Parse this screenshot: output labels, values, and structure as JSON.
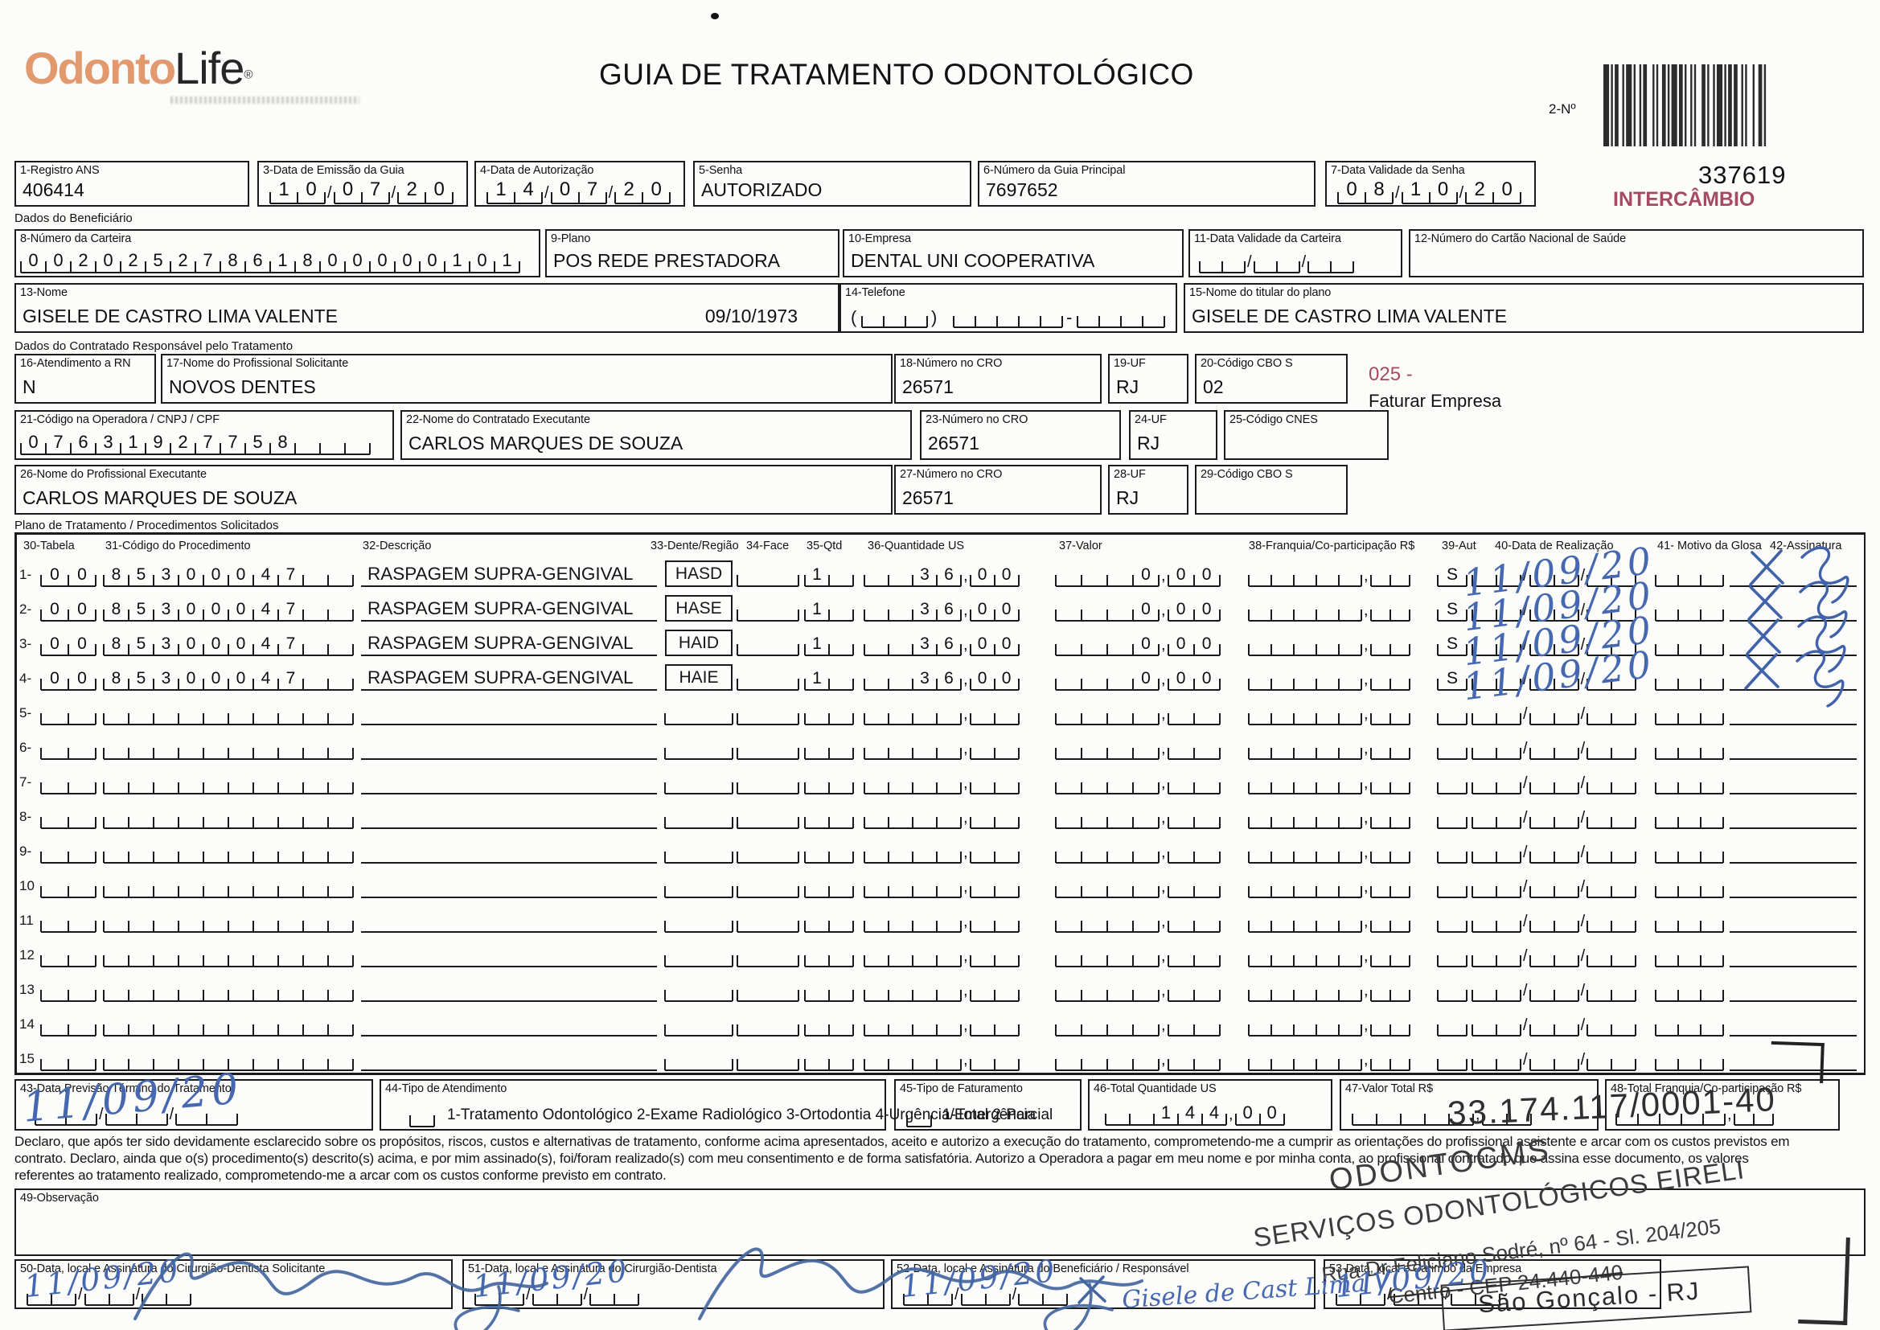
{
  "header": {
    "logo_odonto": "Odonto",
    "logo_life": "Life",
    "logo_reg": "®",
    "title": "GUIA DE TRATAMENTO ODONTOLÓGICO",
    "barcode_label": "2-Nº",
    "guide_number": "337619",
    "intercambio": "INTERCÂMBIO",
    "accent_color": "#a64a63"
  },
  "sections": {
    "beneficiario": "Dados do Beneficiário",
    "contratado": "Dados do Contratado Responsável pelo Tratamento",
    "plano": "Plano de Tratamento / Procedimentos Solicitados"
  },
  "f1": {
    "label": "1-Registro ANS",
    "value": "406414"
  },
  "f3": {
    "label": "3-Data de Emissão da Guia",
    "value": "10/07/20"
  },
  "f4": {
    "label": "4-Data de Autorização",
    "value": "14/07/20"
  },
  "f5": {
    "label": "5-Senha",
    "value": "AUTORIZADO"
  },
  "f6": {
    "label": "6-Número da Guia Principal",
    "value": "7697652"
  },
  "f7": {
    "label": "7-Data Validade da Senha",
    "value": "08/10/20"
  },
  "f8": {
    "label": "8-Número da Carteira",
    "value": "00202527861800000101"
  },
  "f9": {
    "label": "9-Plano",
    "value": "POS REDE PRESTADORA"
  },
  "f10": {
    "label": "10-Empresa",
    "value": "DENTAL UNI  COOPERATIVA"
  },
  "f11": {
    "label": "11-Data Validade da Carteira",
    "value": ""
  },
  "f12": {
    "label": "12-Número do Cartão Nacional de Saúde",
    "value": ""
  },
  "f13": {
    "label": "13-Nome",
    "value": "GISELE DE CASTRO LIMA VALENTE",
    "birthdate": "09/10/1973"
  },
  "f14": {
    "label": "14-Telefone",
    "value": "",
    "paren_open": "(",
    "paren_close": ")",
    "hyphen": "-"
  },
  "f15": {
    "label": "15-Nome do titular do plano",
    "value": "GISELE DE CASTRO LIMA VALENTE"
  },
  "f16": {
    "label": "16-Atendimento a RN",
    "value": "N"
  },
  "f17": {
    "label": "17-Nome do Profissional Solicitante",
    "value": "NOVOS DENTES"
  },
  "f18": {
    "label": "18-Número no CRO",
    "value": "26571"
  },
  "f19": {
    "label": "19-UF",
    "value": "RJ"
  },
  "f20": {
    "label": "20-Código CBO S",
    "value": "02"
  },
  "note025": {
    "code": "025 -",
    "text": "Faturar Empresa"
  },
  "f21": {
    "label": "21-Código na Operadora / CNPJ / CPF",
    "value": "07631927758"
  },
  "f22": {
    "label": "22-Nome do Contratado Executante",
    "value": "CARLOS MARQUES DE SOUZA"
  },
  "f23": {
    "label": "23-Número no CRO",
    "value": "26571"
  },
  "f24": {
    "label": "24-UF",
    "value": "RJ"
  },
  "f25": {
    "label": "25-Código CNES",
    "value": ""
  },
  "f26": {
    "label": "26-Nome do Profissional Executante",
    "value": "CARLOS MARQUES DE SOUZA"
  },
  "f27": {
    "label": "27-Número no CRO",
    "value": "26571"
  },
  "f28": {
    "label": "28-UF",
    "value": "RJ"
  },
  "f29": {
    "label": "29-Código CBO S",
    "value": ""
  },
  "table": {
    "headers": [
      "30-Tabela",
      "31-Código do Procedimento",
      "32-Descrição",
      "33-Dente/Região",
      "34-Face",
      "35-Qtd",
      "36-Quantidade US",
      "37-Valor",
      "38-Franquia/Co-participação R$",
      "39-Aut",
      "40-Data de Realização",
      "41- Motivo da Glosa",
      "42-Assinatura"
    ],
    "rows": [
      {
        "num": "1",
        "tabela": "00",
        "codigo": "85300047",
        "descricao": "RASPAGEM SUPRA-GENGIVAL",
        "dente": "HASD",
        "face": "",
        "qtd": "1",
        "qtd_us": "36,00",
        "valor": "0,00",
        "franquia": "",
        "aut": "S",
        "data_realizacao": "11/09/20",
        "motivo": "",
        "assinatura": "x"
      },
      {
        "num": "2",
        "tabela": "00",
        "codigo": "85300047",
        "descricao": "RASPAGEM SUPRA-GENGIVAL",
        "dente": "HASE",
        "face": "",
        "qtd": "1",
        "qtd_us": "36,00",
        "valor": "0,00",
        "franquia": "",
        "aut": "S",
        "data_realizacao": "11/09/20",
        "motivo": "",
        "assinatura": "x"
      },
      {
        "num": "3",
        "tabela": "00",
        "codigo": "85300047",
        "descricao": "RASPAGEM SUPRA-GENGIVAL",
        "dente": "HAID",
        "face": "",
        "qtd": "1",
        "qtd_us": "36,00",
        "valor": "0,00",
        "franquia": "",
        "aut": "S",
        "data_realizacao": "11/09/20",
        "motivo": "",
        "assinatura": "x"
      },
      {
        "num": "4",
        "tabela": "00",
        "codigo": "85300047",
        "descricao": "RASPAGEM SUPRA-GENGIVAL",
        "dente": "HAIE",
        "face": "",
        "qtd": "1",
        "qtd_us": "36,00",
        "valor": "0,00",
        "franquia": "",
        "aut": "S",
        "data_realizacao": "11/09/20",
        "motivo": "",
        "assinatura": "x"
      },
      {
        "num": "5",
        "tabela": "",
        "codigo": "",
        "descricao": "",
        "dente": "",
        "face": "",
        "qtd": "",
        "qtd_us": "",
        "valor": "",
        "franquia": "",
        "aut": "",
        "data_realizacao": "",
        "motivo": "",
        "assinatura": ""
      },
      {
        "num": "6",
        "tabela": "",
        "codigo": "",
        "descricao": "",
        "dente": "",
        "face": "",
        "qtd": "",
        "qtd_us": "",
        "valor": "",
        "franquia": "",
        "aut": "",
        "data_realizacao": "",
        "motivo": "",
        "assinatura": ""
      },
      {
        "num": "7",
        "tabela": "",
        "codigo": "",
        "descricao": "",
        "dente": "",
        "face": "",
        "qtd": "",
        "qtd_us": "",
        "valor": "",
        "franquia": "",
        "aut": "",
        "data_realizacao": "",
        "motivo": "",
        "assinatura": ""
      },
      {
        "num": "8",
        "tabela": "",
        "codigo": "",
        "descricao": "",
        "dente": "",
        "face": "",
        "qtd": "",
        "qtd_us": "",
        "valor": "",
        "franquia": "",
        "aut": "",
        "data_realizacao": "",
        "motivo": "",
        "assinatura": ""
      },
      {
        "num": "9",
        "tabela": "",
        "codigo": "",
        "descricao": "",
        "dente": "",
        "face": "",
        "qtd": "",
        "qtd_us": "",
        "valor": "",
        "franquia": "",
        "aut": "",
        "data_realizacao": "",
        "motivo": "",
        "assinatura": ""
      },
      {
        "num": "10",
        "tabela": "",
        "codigo": "",
        "descricao": "",
        "dente": "",
        "face": "",
        "qtd": "",
        "qtd_us": "",
        "valor": "",
        "franquia": "",
        "aut": "",
        "data_realizacao": "",
        "motivo": "",
        "assinatura": ""
      },
      {
        "num": "11",
        "tabela": "",
        "codigo": "",
        "descricao": "",
        "dente": "",
        "face": "",
        "qtd": "",
        "qtd_us": "",
        "valor": "",
        "franquia": "",
        "aut": "",
        "data_realizacao": "",
        "motivo": "",
        "assinatura": ""
      },
      {
        "num": "12",
        "tabela": "",
        "codigo": "",
        "descricao": "",
        "dente": "",
        "face": "",
        "qtd": "",
        "qtd_us": "",
        "valor": "",
        "franquia": "",
        "aut": "",
        "data_realizacao": "",
        "motivo": "",
        "assinatura": ""
      },
      {
        "num": "13",
        "tabela": "",
        "codigo": "",
        "descricao": "",
        "dente": "",
        "face": "",
        "qtd": "",
        "qtd_us": "",
        "valor": "",
        "franquia": "",
        "aut": "",
        "data_realizacao": "",
        "motivo": "",
        "assinatura": ""
      },
      {
        "num": "14",
        "tabela": "",
        "codigo": "",
        "descricao": "",
        "dente": "",
        "face": "",
        "qtd": "",
        "qtd_us": "",
        "valor": "",
        "franquia": "",
        "aut": "",
        "data_realizacao": "",
        "motivo": "",
        "assinatura": ""
      },
      {
        "num": "15",
        "tabela": "",
        "codigo": "",
        "descricao": "",
        "dente": "",
        "face": "",
        "qtd": "",
        "qtd_us": "",
        "valor": "",
        "franquia": "",
        "aut": "",
        "data_realizacao": "",
        "motivo": "",
        "assinatura": ""
      }
    ]
  },
  "f43": {
    "label": "43-Data Previsão Término do Tratamento",
    "handwritten": "11/09/20"
  },
  "f44": {
    "label": "44-Tipo de Atendimento",
    "options": "1-Tratamento Odontológico  2-Exame Radiológico  3-Ortodontia  4-Urgência/Emergência",
    "value": ""
  },
  "f45": {
    "label": "45-Tipo de Faturamento",
    "options": "1-Total  2-Parcial",
    "value": ""
  },
  "f46": {
    "label": "46-Total Quantidade US",
    "value": "144,00"
  },
  "f47": {
    "label": "47-Valor Total R$",
    "value": ""
  },
  "f48": {
    "label": "48-Total Franquia/Co-participação R$",
    "value": ""
  },
  "declaration": {
    "line1": "Declaro, que após ter sido devidamente esclarecido sobre os propósitos, riscos, custos e alternativas de tratamento, conforme acima apresentados, aceito e autorizo a execução do tratamento, comprometendo-me a cumprir as orientações do profissional assistente e arcar com os custos previstos em",
    "line2": "contrato. Declaro, ainda que o(s) procedimento(s) descrito(s) acima, e por mim assinado(s), foi/foram realizado(s) com meu consentimento e de forma satisfatória. Autorizo a Operadora a pagar em meu nome e por minha conta, ao profissional contratado que assina esse documento, os valores",
    "line3": "referentes ao tratamento realizado, comprometendo-me a arcar com os custos conforme previsto em contrato."
  },
  "f49": {
    "label": "49-Observação",
    "value": ""
  },
  "stamp": {
    "cnpj": "33.174.117/0001-40",
    "name1": "ODONTOCMS",
    "name2": "SERVIÇOS ODONTOLÓGICOS EIRELI",
    "address": "Rua Dr Feliciano Sodré, nº 64 - Sl. 204/205",
    "district": "Centro -  CEP  24.440-440",
    "city": "São Gonçalo - RJ"
  },
  "f50": {
    "label": "50-Data, local e Assinatura do Cirurgião-Dentista Solicitante",
    "date": "11/09/20"
  },
  "f51": {
    "label": "51-Data, local e Assinatura do Cirurgião-Dentista",
    "date": "11/09/20"
  },
  "f52": {
    "label": "52-Data, local e Assinatura do Beneficiário / Responsável",
    "date": "11/09/20",
    "signature_name": "Gisele de Cast Lima V"
  },
  "f53": {
    "label": "53-Data, local e Carimbo da Empresa",
    "date": "11/09/20"
  }
}
